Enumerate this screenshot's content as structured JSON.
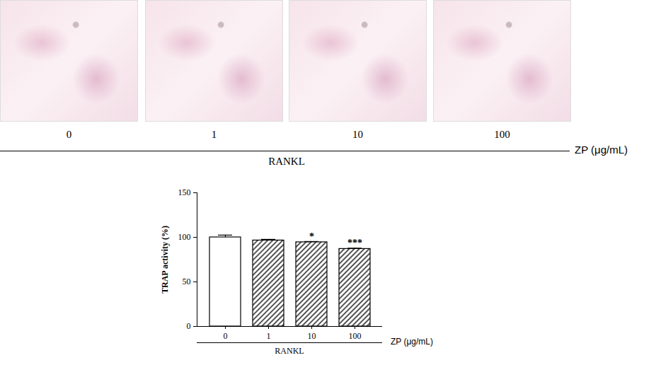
{
  "chart_data": {
    "type": "bar",
    "categories": [
      "0",
      "1",
      "10",
      "100"
    ],
    "values": [
      100,
      96.5,
      94.5,
      87
    ],
    "errors": [
      2.5,
      1.2,
      0.8,
      0.8
    ],
    "annotations": [
      {
        "category": "10",
        "text": "*"
      },
      {
        "category": "100",
        "text": "***"
      }
    ],
    "xlabel": "ZP (μg/mL)",
    "ylabel": "TRAP activity (%)",
    "group_label": "RANKL",
    "colors": [
      "#ffffff",
      "#555555",
      "#555555",
      "#555555"
    ],
    "ylim": [
      0,
      150
    ],
    "yticks": [
      0,
      50,
      100,
      150
    ]
  }
}
